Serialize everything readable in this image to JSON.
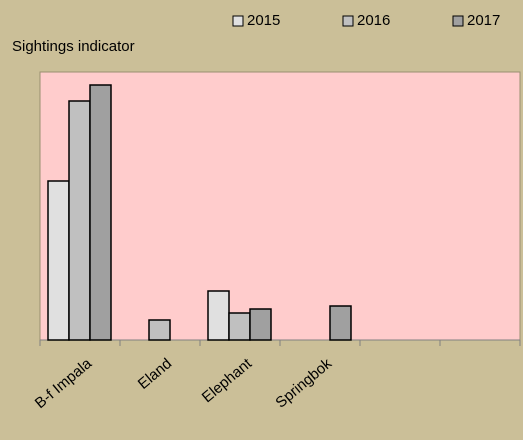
{
  "chart_data": {
    "type": "bar",
    "title": "Sightings indicator",
    "categories": [
      "B-f Impala",
      "Eland",
      "Elephant",
      "Springbok",
      null,
      null
    ],
    "series": [
      {
        "name": "2015",
        "color": "#e0e0e0",
        "values": [
          159,
          null,
          49,
          null,
          null,
          null
        ]
      },
      {
        "name": "2016",
        "color": "#c0c0c0",
        "values": [
          239,
          20,
          27,
          null,
          null,
          null
        ]
      },
      {
        "name": "2017",
        "color": "#a0a0a0",
        "values": [
          255,
          null,
          31,
          34,
          null,
          null
        ]
      }
    ],
    "ylim": [
      0,
      268
    ]
  }
}
